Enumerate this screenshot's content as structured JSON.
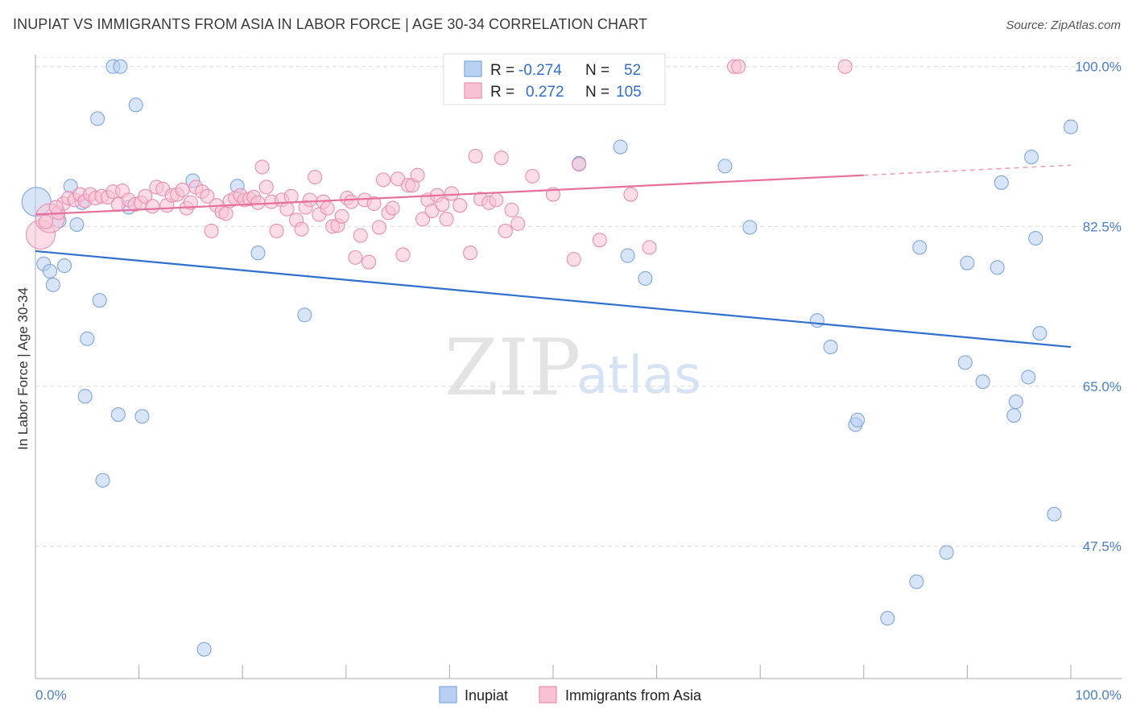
{
  "header": {
    "title": "INUPIAT VS IMMIGRANTS FROM ASIA IN LABOR FORCE | AGE 30-34 CORRELATION CHART",
    "source": "Source: ZipAtlas.com"
  },
  "watermark": {
    "zip": "ZIP",
    "atlas": "atlas"
  },
  "legend": {
    "r_label": "R =",
    "n_label": "N =",
    "rows": [
      {
        "r": "-0.274",
        "n": "52",
        "fill": "#b8d0f2",
        "stroke": "#7ea6e0"
      },
      {
        "r": "0.272",
        "n": "105",
        "fill": "#f9c1d3",
        "stroke": "#ea8fb0"
      }
    ]
  },
  "chart_data": {
    "type": "scatter",
    "title": "INUPIAT VS IMMIGRANTS FROM ASIA IN LABOR FORCE | AGE 30-34 CORRELATION CHART",
    "ylabel": "In Labor Force | Age 30-34",
    "xlim": [
      0,
      100
    ],
    "ylim": [
      33,
      102
    ],
    "x_tick_labels": [
      "0.0%",
      "100.0%"
    ],
    "y_ticks": [
      {
        "value": 47.5,
        "label": "47.5%"
      },
      {
        "value": 65.0,
        "label": "65.0%"
      },
      {
        "value": 82.5,
        "label": "82.5%"
      },
      {
        "value": 100.0,
        "label": "100.0%"
      }
    ],
    "grid": true,
    "legend_position": "top-center",
    "series": [
      {
        "name": "Inupiat",
        "color": "#7ea6e0",
        "fill": "#b8d0f2",
        "line_color": "#2f6fce",
        "trend": [
          [
            0,
            79.8
          ],
          [
            100,
            69.3
          ]
        ],
        "points": [
          [
            0.1,
            85.2
          ],
          [
            0.8,
            78.4
          ],
          [
            1.4,
            77.6
          ],
          [
            1.7,
            76.1
          ],
          [
            2.3,
            83.1
          ],
          [
            2.8,
            78.2
          ],
          [
            3.4,
            86.9
          ],
          [
            4.0,
            82.7
          ],
          [
            4.5,
            85.1
          ],
          [
            5.0,
            70.2
          ],
          [
            4.8,
            63.9
          ],
          [
            6.0,
            94.3
          ],
          [
            6.2,
            74.4
          ],
          [
            6.5,
            54.7
          ],
          [
            7.5,
            100.0
          ],
          [
            8.0,
            61.9
          ],
          [
            8.2,
            100.0
          ],
          [
            9.0,
            84.6
          ],
          [
            9.7,
            95.8
          ],
          [
            10.3,
            61.7
          ],
          [
            15.2,
            87.5
          ],
          [
            16.3,
            36.2
          ],
          [
            19.5,
            86.9
          ],
          [
            21.5,
            79.6
          ],
          [
            26.0,
            72.8
          ],
          [
            52.5,
            89.4
          ],
          [
            56.5,
            91.2
          ],
          [
            57.2,
            79.3
          ],
          [
            58.9,
            76.8
          ],
          [
            66.6,
            89.1
          ],
          [
            69.0,
            82.4
          ],
          [
            75.5,
            72.2
          ],
          [
            76.8,
            69.3
          ],
          [
            79.2,
            60.8
          ],
          [
            79.4,
            61.3
          ],
          [
            82.3,
            39.6
          ],
          [
            85.1,
            43.6
          ],
          [
            85.4,
            80.2
          ],
          [
            88.0,
            46.8
          ],
          [
            89.8,
            67.6
          ],
          [
            90.0,
            78.5
          ],
          [
            91.5,
            65.5
          ],
          [
            92.9,
            78.0
          ],
          [
            93.3,
            87.3
          ],
          [
            94.5,
            61.8
          ],
          [
            94.7,
            63.3
          ],
          [
            95.9,
            66.0
          ],
          [
            96.2,
            90.1
          ],
          [
            96.6,
            81.2
          ],
          [
            97.0,
            70.8
          ],
          [
            98.4,
            51.0
          ],
          [
            100.0,
            93.4
          ]
        ],
        "large_points": [
          [
            0.1,
            85.2
          ]
        ]
      },
      {
        "name": "Immigrants from Asia",
        "color": "#ea8fb0",
        "fill": "#f9c1d3",
        "line_color": "#e76f9c",
        "trend": [
          [
            0,
            83.8
          ],
          [
            80,
            88.1
          ]
        ],
        "trend_dashed": [
          [
            80,
            88.1
          ],
          [
            100,
            89.2
          ]
        ],
        "points": [
          [
            0.5,
            81.6
          ],
          [
            1.4,
            83.4
          ],
          [
            2.2,
            84.0
          ],
          [
            2.7,
            85.0
          ],
          [
            3.2,
            85.6
          ],
          [
            3.8,
            85.4
          ],
          [
            4.3,
            86.0
          ],
          [
            4.8,
            85.3
          ],
          [
            5.3,
            86.0
          ],
          [
            5.8,
            85.6
          ],
          [
            6.4,
            85.8
          ],
          [
            7.0,
            85.7
          ],
          [
            7.5,
            86.3
          ],
          [
            8.0,
            84.9
          ],
          [
            8.4,
            86.4
          ],
          [
            9.0,
            85.4
          ],
          [
            9.6,
            84.9
          ],
          [
            10.2,
            85.1
          ],
          [
            10.6,
            85.8
          ],
          [
            11.3,
            84.7
          ],
          [
            11.7,
            86.8
          ],
          [
            12.3,
            86.6
          ],
          [
            12.7,
            84.8
          ],
          [
            13.2,
            85.9
          ],
          [
            13.7,
            86.0
          ],
          [
            14.2,
            86.5
          ],
          [
            14.6,
            84.5
          ],
          [
            15.0,
            85.1
          ],
          [
            15.5,
            86.8
          ],
          [
            16.1,
            86.3
          ],
          [
            16.6,
            85.8
          ],
          [
            17.0,
            82.0
          ],
          [
            17.5,
            84.8
          ],
          [
            18.0,
            84.1
          ],
          [
            18.4,
            83.9
          ],
          [
            18.8,
            85.3
          ],
          [
            19.3,
            85.6
          ],
          [
            19.8,
            85.9
          ],
          [
            20.2,
            85.4
          ],
          [
            20.7,
            85.5
          ],
          [
            21.1,
            85.7
          ],
          [
            21.5,
            85.1
          ],
          [
            21.9,
            89.0
          ],
          [
            22.3,
            86.8
          ],
          [
            22.8,
            85.2
          ],
          [
            23.3,
            82.0
          ],
          [
            23.8,
            85.4
          ],
          [
            24.3,
            84.4
          ],
          [
            24.7,
            85.8
          ],
          [
            25.2,
            83.2
          ],
          [
            25.7,
            82.2
          ],
          [
            26.1,
            84.6
          ],
          [
            26.5,
            85.4
          ],
          [
            27.0,
            87.9
          ],
          [
            27.4,
            83.8
          ],
          [
            27.8,
            85.2
          ],
          [
            28.2,
            84.5
          ],
          [
            28.7,
            82.5
          ],
          [
            29.2,
            82.6
          ],
          [
            29.6,
            83.6
          ],
          [
            30.1,
            85.6
          ],
          [
            30.5,
            85.2
          ],
          [
            30.9,
            79.1
          ],
          [
            31.4,
            81.5
          ],
          [
            31.8,
            85.4
          ],
          [
            32.2,
            78.6
          ],
          [
            32.7,
            85.0
          ],
          [
            33.2,
            82.4
          ],
          [
            33.6,
            87.6
          ],
          [
            34.1,
            84.0
          ],
          [
            34.5,
            84.5
          ],
          [
            35.0,
            87.7
          ],
          [
            35.5,
            79.4
          ],
          [
            36.0,
            87.0
          ],
          [
            36.4,
            87.0
          ],
          [
            36.9,
            88.1
          ],
          [
            37.4,
            83.3
          ],
          [
            37.9,
            85.4
          ],
          [
            38.3,
            84.2
          ],
          [
            38.8,
            85.9
          ],
          [
            39.3,
            84.9
          ],
          [
            39.7,
            83.3
          ],
          [
            40.2,
            86.1
          ],
          [
            41.0,
            84.8
          ],
          [
            42.0,
            79.6
          ],
          [
            42.5,
            90.2
          ],
          [
            43.0,
            85.5
          ],
          [
            43.8,
            85.1
          ],
          [
            44.5,
            85.4
          ],
          [
            45.0,
            90.0
          ],
          [
            45.4,
            82.0
          ],
          [
            46.0,
            84.3
          ],
          [
            46.6,
            82.8
          ],
          [
            48.0,
            88.0
          ],
          [
            50.0,
            86.0
          ],
          [
            52.0,
            78.9
          ],
          [
            52.5,
            89.3
          ],
          [
            54.5,
            81.0
          ],
          [
            57.5,
            86.0
          ],
          [
            59.3,
            80.2
          ],
          [
            67.5,
            100.0
          ],
          [
            67.9,
            100.0
          ],
          [
            78.2,
            100.0
          ],
          [
            1.0,
            83.0
          ],
          [
            2.0,
            84.6
          ]
        ],
        "large_points": [
          [
            0.5,
            81.6
          ],
          [
            1.4,
            83.4
          ]
        ]
      }
    ]
  },
  "bottom_legend": [
    "Inupiat",
    "Immigrants from Asia"
  ]
}
